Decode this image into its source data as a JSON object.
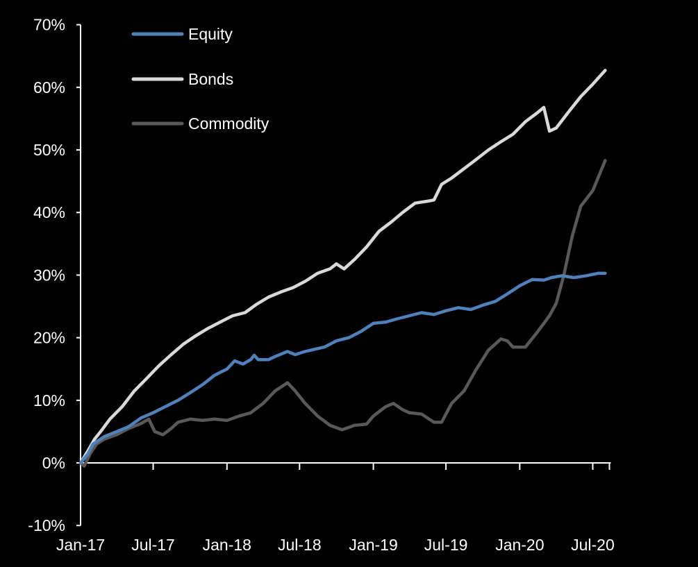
{
  "chart_data": {
    "type": "line",
    "title": "",
    "xlabel": "",
    "ylabel": "",
    "x_ticks": [
      "Jan-17",
      "Jul-17",
      "Jan-18",
      "Jul-18",
      "Jan-19",
      "Jul-19",
      "Jan-20",
      "Jul-20"
    ],
    "y_ticks": [
      "-10%",
      "0%",
      "10%",
      "20%",
      "30%",
      "40%",
      "50%",
      "60%",
      "70%"
    ],
    "y_tick_values": [
      -10,
      0,
      10,
      20,
      30,
      40,
      50,
      60,
      70
    ],
    "ylim": [
      -10,
      70
    ],
    "xlim": [
      "2017-01-01",
      "2020-08-15"
    ],
    "grid": false,
    "legend_position": "top-left",
    "background": "#000000",
    "series": [
      {
        "name": "Equity",
        "color": "#4f81bd",
        "points": [
          [
            "2017-01-01",
            0
          ],
          [
            "2017-01-20",
            1.5
          ],
          [
            "2017-02-01",
            3
          ],
          [
            "2017-03-01",
            4.2
          ],
          [
            "2017-04-01",
            5
          ],
          [
            "2017-05-01",
            5.8
          ],
          [
            "2017-06-01",
            7.2
          ],
          [
            "2017-07-01",
            8
          ],
          [
            "2017-08-01",
            9
          ],
          [
            "2017-09-01",
            10
          ],
          [
            "2017-10-01",
            11.2
          ],
          [
            "2017-11-01",
            12.5
          ],
          [
            "2017-12-01",
            14
          ],
          [
            "2018-01-01",
            15
          ],
          [
            "2018-01-20",
            16.3
          ],
          [
            "2018-02-10",
            15.8
          ],
          [
            "2018-03-01",
            16.5
          ],
          [
            "2018-03-10",
            17.2
          ],
          [
            "2018-03-20",
            16.5
          ],
          [
            "2018-04-15",
            16.5
          ],
          [
            "2018-05-01",
            17
          ],
          [
            "2018-06-01",
            17.8
          ],
          [
            "2018-06-20",
            17.3
          ],
          [
            "2018-07-15",
            17.8
          ],
          [
            "2018-09-01",
            18.5
          ],
          [
            "2018-10-01",
            19.5
          ],
          [
            "2018-11-01",
            20
          ],
          [
            "2018-12-01",
            21
          ],
          [
            "2019-01-01",
            22.3
          ],
          [
            "2019-02-01",
            22.5
          ],
          [
            "2019-03-01",
            23
          ],
          [
            "2019-04-01",
            23.5
          ],
          [
            "2019-05-01",
            24
          ],
          [
            "2019-06-01",
            23.7
          ],
          [
            "2019-07-01",
            24.3
          ],
          [
            "2019-08-01",
            24.8
          ],
          [
            "2019-09-01",
            24.5
          ],
          [
            "2019-10-01",
            25.2
          ],
          [
            "2019-11-01",
            25.8
          ],
          [
            "2019-12-01",
            27
          ],
          [
            "2020-01-01",
            28.3
          ],
          [
            "2020-02-01",
            29.3
          ],
          [
            "2020-03-01",
            29.2
          ],
          [
            "2020-03-20",
            29.6
          ],
          [
            "2020-04-15",
            29.9
          ],
          [
            "2020-05-15",
            29.6
          ],
          [
            "2020-06-15",
            29.9
          ],
          [
            "2020-07-15",
            30.3
          ],
          [
            "2020-08-01",
            30.3
          ]
        ]
      },
      {
        "name": "Bonds",
        "color": "#d9d9d9",
        "points": [
          [
            "2017-01-01",
            0
          ],
          [
            "2017-01-20",
            2
          ],
          [
            "2017-02-05",
            3.8
          ],
          [
            "2017-02-20",
            5
          ],
          [
            "2017-03-15",
            7
          ],
          [
            "2017-04-15",
            9
          ],
          [
            "2017-05-15",
            11.5
          ],
          [
            "2017-06-15",
            13.5
          ],
          [
            "2017-07-15",
            15.5
          ],
          [
            "2017-08-15",
            17.3
          ],
          [
            "2017-09-15",
            19
          ],
          [
            "2017-10-15",
            20.3
          ],
          [
            "2017-11-15",
            21.5
          ],
          [
            "2017-12-15",
            22.5
          ],
          [
            "2018-01-15",
            23.5
          ],
          [
            "2018-02-15",
            24
          ],
          [
            "2018-03-15",
            25.3
          ],
          [
            "2018-04-15",
            26.5
          ],
          [
            "2018-05-15",
            27.3
          ],
          [
            "2018-06-15",
            28
          ],
          [
            "2018-07-15",
            29
          ],
          [
            "2018-08-15",
            30.3
          ],
          [
            "2018-09-15",
            31
          ],
          [
            "2018-10-01",
            31.8
          ],
          [
            "2018-10-20",
            31
          ],
          [
            "2018-11-15",
            32.5
          ],
          [
            "2018-12-15",
            34.5
          ],
          [
            "2019-01-15",
            37
          ],
          [
            "2019-02-15",
            38.5
          ],
          [
            "2019-03-15",
            40
          ],
          [
            "2019-04-15",
            41.5
          ],
          [
            "2019-05-15",
            41.8
          ],
          [
            "2019-06-01",
            42
          ],
          [
            "2019-06-20",
            44.5
          ],
          [
            "2019-07-15",
            45.5
          ],
          [
            "2019-08-15",
            47
          ],
          [
            "2019-09-15",
            48.5
          ],
          [
            "2019-10-15",
            50
          ],
          [
            "2019-11-15",
            51.3
          ],
          [
            "2019-12-15",
            52.5
          ],
          [
            "2020-01-15",
            54.5
          ],
          [
            "2020-02-15",
            56
          ],
          [
            "2020-03-01",
            56.8
          ],
          [
            "2020-03-15",
            53
          ],
          [
            "2020-04-01",
            53.5
          ],
          [
            "2020-05-01",
            56
          ],
          [
            "2020-06-01",
            58.5
          ],
          [
            "2020-07-01",
            60.5
          ],
          [
            "2020-08-01",
            62.7
          ]
        ]
      },
      {
        "name": "Commodity",
        "color": "#595959",
        "points": [
          [
            "2017-01-01",
            0
          ],
          [
            "2017-01-10",
            -0.5
          ],
          [
            "2017-01-25",
            1.5
          ],
          [
            "2017-02-10",
            3
          ],
          [
            "2017-03-01",
            3.8
          ],
          [
            "2017-04-01",
            4.5
          ],
          [
            "2017-05-01",
            5.5
          ],
          [
            "2017-06-01",
            6.3
          ],
          [
            "2017-06-20",
            7
          ],
          [
            "2017-07-05",
            5
          ],
          [
            "2017-07-25",
            4.5
          ],
          [
            "2017-08-15",
            5.5
          ],
          [
            "2017-09-01",
            6.5
          ],
          [
            "2017-10-01",
            7
          ],
          [
            "2017-11-01",
            6.8
          ],
          [
            "2017-12-01",
            7
          ],
          [
            "2018-01-01",
            6.8
          ],
          [
            "2018-02-01",
            7.5
          ],
          [
            "2018-03-01",
            8
          ],
          [
            "2018-04-01",
            9.5
          ],
          [
            "2018-05-01",
            11.5
          ],
          [
            "2018-06-01",
            12.8
          ],
          [
            "2018-06-20",
            11.5
          ],
          [
            "2018-07-15",
            9.5
          ],
          [
            "2018-08-15",
            7.5
          ],
          [
            "2018-09-15",
            6
          ],
          [
            "2018-10-15",
            5.3
          ],
          [
            "2018-11-15",
            6
          ],
          [
            "2018-12-15",
            6.2
          ],
          [
            "2019-01-01",
            7.5
          ],
          [
            "2019-02-01",
            9
          ],
          [
            "2019-02-20",
            9.5
          ],
          [
            "2019-03-15",
            8.5
          ],
          [
            "2019-04-01",
            8
          ],
          [
            "2019-05-01",
            7.8
          ],
          [
            "2019-06-01",
            6.5
          ],
          [
            "2019-06-20",
            6.5
          ],
          [
            "2019-07-15",
            9.5
          ],
          [
            "2019-08-15",
            11.5
          ],
          [
            "2019-09-15",
            15
          ],
          [
            "2019-10-15",
            18
          ],
          [
            "2019-11-15",
            19.8
          ],
          [
            "2019-12-01",
            19.5
          ],
          [
            "2019-12-15",
            18.5
          ],
          [
            "2020-01-15",
            18.5
          ],
          [
            "2020-02-15",
            21
          ],
          [
            "2020-03-15",
            23.5
          ],
          [
            "2020-04-01",
            25.5
          ],
          [
            "2020-04-20",
            30
          ],
          [
            "2020-05-10",
            36
          ],
          [
            "2020-06-01",
            41
          ],
          [
            "2020-07-01",
            43.5
          ],
          [
            "2020-08-01",
            48.3
          ]
        ]
      }
    ]
  }
}
